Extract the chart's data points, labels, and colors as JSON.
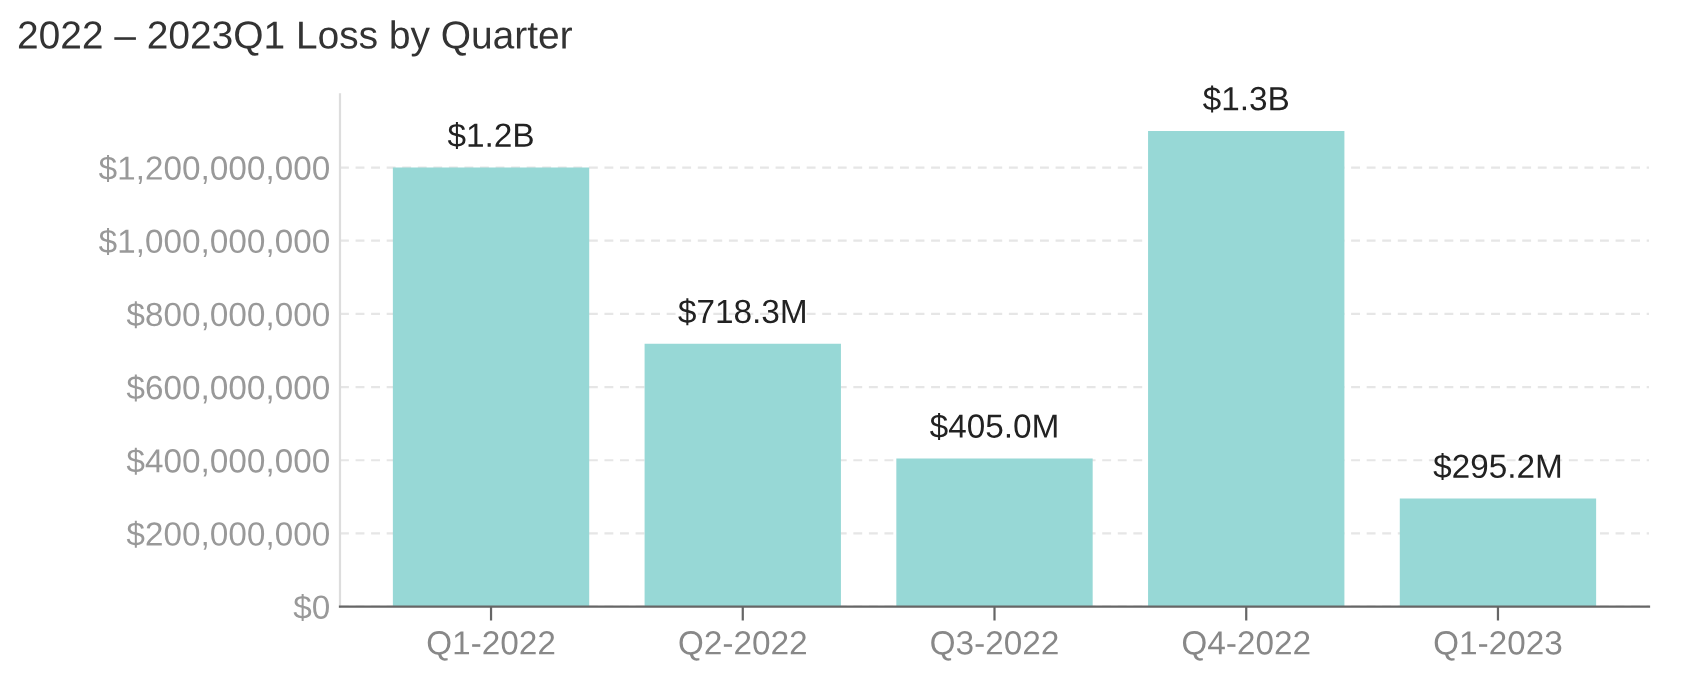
{
  "chart_data": {
    "type": "bar",
    "title": "2022 – 2023Q1 Loss by Quarter",
    "categories": [
      "Q1-2022",
      "Q2-2022",
      "Q3-2022",
      "Q4-2022",
      "Q1-2023"
    ],
    "values": [
      1200000000,
      718300000,
      405000000,
      1300000000,
      295200000
    ],
    "value_labels": [
      "$1.2B",
      "$718.3M",
      "$405.0M",
      "$1.3B",
      "$295.2M"
    ],
    "color": "#97d8d6",
    "ylim": [
      0,
      1400000000
    ],
    "yticks": [
      {
        "value": 0,
        "label": "$0"
      },
      {
        "value": 200000000,
        "label": "$200,000,000"
      },
      {
        "value": 400000000,
        "label": "$400,000,000"
      },
      {
        "value": 600000000,
        "label": "$600,000,000"
      },
      {
        "value": 800000000,
        "label": "$800,000,000"
      },
      {
        "value": 1000000000,
        "label": "$1,000,000,000"
      },
      {
        "value": 1200000000,
        "label": "$1,200,000,000"
      }
    ],
    "grid": "y"
  }
}
